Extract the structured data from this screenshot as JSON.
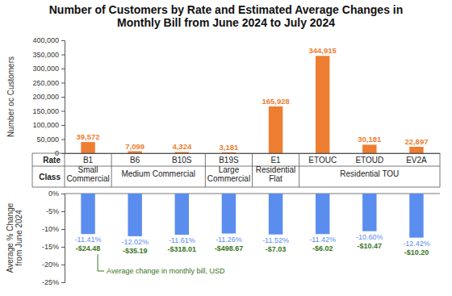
{
  "chart_data": [
    {
      "type": "bar",
      "title": "Number of Customers by Rate and Estimated Average Changes in Monthly Bill from June 2024 to July 2024",
      "ylabel": "Number oc Customers",
      "category_label": "Rate",
      "categories": [
        "B1",
        "B6",
        "B10S",
        "B19S",
        "E1",
        "ETOUC",
        "ETOUD",
        "EV2A"
      ],
      "values": [
        39572,
        7099,
        4324,
        3181,
        165928,
        344915,
        30181,
        22897
      ],
      "value_labels": [
        "39,572",
        "7,099",
        "4,324",
        "3,181",
        "165,928",
        "344,915",
        "30,181",
        "22,897"
      ],
      "data_labels": true,
      "color": "#ed7d31",
      "ylim": [
        0,
        400000
      ],
      "yticks": [
        0,
        {
          "value": 50000,
          "label": "50,000"
        },
        {
          "value": 100000,
          "label": "100,000"
        },
        {
          "value": 150000,
          "label": "150,000"
        },
        {
          "value": 200000,
          "label": "200,000"
        },
        {
          "value": 250000,
          "label": "250,000"
        },
        {
          "value": 300000,
          "label": "300,000"
        },
        {
          "value": 350000,
          "label": "350,000"
        },
        {
          "value": 400000,
          "label": "400,000"
        }
      ],
      "grid": false,
      "group_label": "Class",
      "groups": [
        {
          "label": "Small Commercial",
          "categories": [
            "B1"
          ]
        },
        {
          "label": "Medium Commercial",
          "categories": [
            "B6",
            "B10S"
          ]
        },
        {
          "label": "Large Commercial",
          "categories": [
            "B19S"
          ]
        },
        {
          "label": "Residential Flat",
          "categories": [
            "E1"
          ]
        },
        {
          "label": "Residential TOU",
          "categories": [
            "ETOUC",
            "ETOUD",
            "EV2A"
          ]
        }
      ]
    },
    {
      "type": "bar",
      "ylabel": "Average % Change from June 2024",
      "values": [
        -11.41,
        -12.02,
        -11.61,
        -11.26,
        -11.52,
        -11.42,
        -10.6,
        -12.42
      ],
      "value_labels": [
        "-11.41%",
        "-12.02%",
        "-11.61%",
        "-11.26%",
        "-11.52%",
        "-11.42%",
        "-10.60%",
        "-12.42%"
      ],
      "data_labels": true,
      "color": "#5b8def",
      "ylim": [
        -25,
        0
      ],
      "yticks": [
        {
          "value": -25,
          "label": "-25%"
        },
        {
          "value": -20,
          "label": "-20%"
        },
        {
          "value": -15,
          "label": "-15%"
        },
        {
          "value": -10,
          "label": "-10%"
        },
        {
          "value": -5,
          "label": "-5%"
        },
        {
          "value": 0,
          "label": "0%"
        }
      ],
      "grid": false,
      "bill_change": {
        "name": "Average change in monthly bill, USD",
        "values": [
          -24.48,
          -35.19,
          -318.01,
          -498.67,
          -7.03,
          -6.02,
          -10.47,
          -10.2
        ],
        "value_labels": [
          "-$24.48",
          "-$35.19",
          "-$318.01",
          "-$498.67",
          "-$7.03",
          "-$6.02",
          "-$10.47",
          "-$10.20"
        ],
        "color": "#38761d"
      }
    }
  ]
}
